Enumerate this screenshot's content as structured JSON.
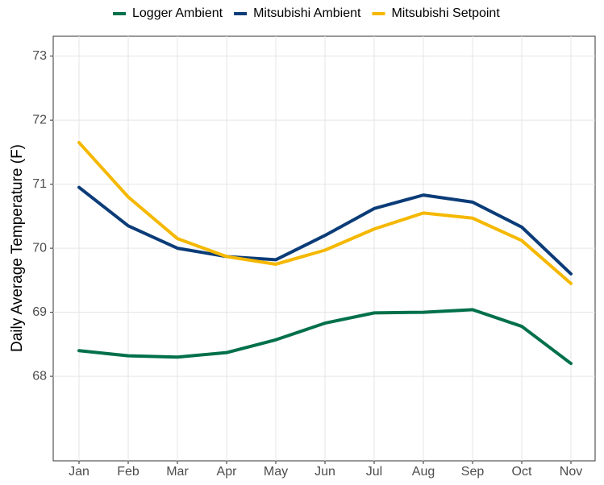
{
  "chart_data": {
    "type": "line",
    "y_label": "Daily Average Temperature (F)",
    "categories": [
      "Jan",
      "Feb",
      "Mar",
      "Apr",
      "May",
      "Jun",
      "Jul",
      "Aug",
      "Sep",
      "Oct",
      "Nov"
    ],
    "series": [
      {
        "name": "Logger Ambient",
        "color": "#00704a",
        "values": [
          68.4,
          68.32,
          68.3,
          68.37,
          68.57,
          68.83,
          68.99,
          69.0,
          69.04,
          68.78,
          68.2
        ]
      },
      {
        "name": "Mitsubishi Ambient",
        "color": "#0b3c78",
        "values": [
          70.95,
          70.35,
          70.0,
          69.87,
          69.82,
          70.2,
          70.62,
          70.83,
          70.72,
          70.33,
          69.6
        ]
      },
      {
        "name": "Mitsubishi Setpoint",
        "color": "#f5b800",
        "values": [
          71.65,
          70.8,
          70.15,
          69.87,
          69.75,
          69.97,
          70.3,
          70.55,
          70.47,
          70.12,
          69.45
        ]
      }
    ],
    "ylim": [
      66.68,
      73.31
    ],
    "yticks": [
      68,
      69,
      70,
      71,
      72,
      73
    ],
    "grid": true,
    "legend": "top"
  }
}
